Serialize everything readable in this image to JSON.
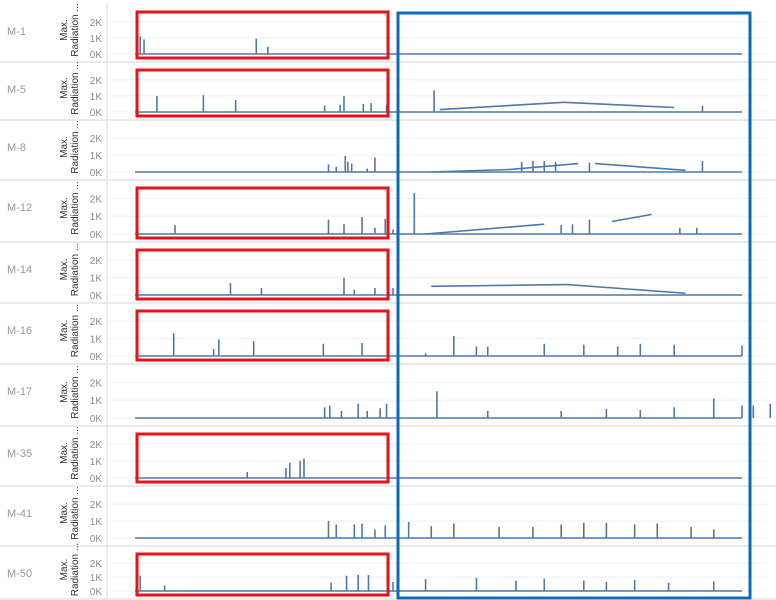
{
  "colors": {
    "line": "#4e79a7",
    "row_border": "#d4d4d4",
    "row_label": "#999999",
    "axis_title": "#333333",
    "tick_label": "#8c8c8c",
    "red_highlight": "#e8121a",
    "blue_highlight": "#0a6bbb"
  },
  "chart_data": {
    "type": "line",
    "y_axis_title": [
      "Max.",
      "Radiation ..."
    ],
    "y_ticks": [
      {
        "value": 0,
        "label": "0K"
      },
      {
        "value": 1000,
        "label": "1K"
      },
      {
        "value": 2000,
        "label": "2K"
      }
    ],
    "ylim": [
      0,
      2300
    ],
    "xlim": [
      0,
      1
    ],
    "grid": true,
    "panels": [
      {
        "name": "M-1",
        "baseline_to": 1.0,
        "spikes": [
          [
            0.02,
            1100
          ],
          [
            0.035,
            900
          ],
          [
            0.47,
            950
          ],
          [
            0.515,
            450
          ]
        ],
        "ramps": []
      },
      {
        "name": "M-5",
        "baseline_to": 1.0,
        "spikes": [
          [
            0.085,
            1000
          ],
          [
            0.265,
            1050
          ],
          [
            0.39,
            750
          ],
          [
            0.735,
            400
          ],
          [
            0.795,
            450
          ],
          [
            0.81,
            1000
          ],
          [
            0.885,
            500
          ],
          [
            0.915,
            550
          ],
          [
            0.975,
            450
          ],
          [
            1.055,
            1350
          ],
          [
            1.53,
            400
          ]
        ],
        "ramps": [
          [
            1.065,
            1.285,
            150,
            600
          ],
          [
            1.285,
            1.48,
            600,
            280
          ]
        ]
      },
      {
        "name": "M-8",
        "baseline_to": 1.0,
        "spikes": [
          [
            0.75,
            450
          ],
          [
            0.78,
            300
          ],
          [
            0.815,
            950
          ],
          [
            0.825,
            600
          ],
          [
            0.84,
            500
          ],
          [
            0.9,
            200
          ],
          [
            0.93,
            850
          ],
          [
            1.21,
            600
          ],
          [
            1.23,
            650
          ],
          [
            1.25,
            650
          ],
          [
            1.27,
            600
          ],
          [
            1.33,
            550
          ],
          [
            1.53,
            650
          ]
        ],
        "ramps": [
          [
            1.05,
            1.19,
            0,
            150
          ],
          [
            1.19,
            1.31,
            150,
            500
          ],
          [
            1.34,
            1.5,
            500,
            100
          ]
        ]
      },
      {
        "name": "M-12",
        "baseline_to": 1.0,
        "spikes": [
          [
            0.155,
            500
          ],
          [
            0.75,
            800
          ],
          [
            0.81,
            550
          ],
          [
            0.88,
            950
          ],
          [
            0.93,
            350
          ],
          [
            0.97,
            850
          ],
          [
            1.0,
            250
          ],
          [
            1.02,
            2300
          ],
          [
            1.28,
            500
          ],
          [
            1.3,
            550
          ],
          [
            1.33,
            800
          ],
          [
            1.49,
            350
          ],
          [
            1.52,
            350
          ]
        ],
        "ramps": [
          [
            1.04,
            1.25,
            0,
            550
          ],
          [
            1.37,
            1.44,
            700,
            1100
          ]
        ]
      },
      {
        "name": "M-14",
        "baseline_to": 1.0,
        "spikes": [
          [
            0.37,
            700
          ],
          [
            0.49,
            400
          ],
          [
            0.81,
            1000
          ],
          [
            0.85,
            300
          ],
          [
            0.93,
            400
          ],
          [
            1.0,
            400
          ]
        ],
        "ramps": [
          [
            1.05,
            1.29,
            500,
            600
          ],
          [
            1.29,
            1.5,
            600,
            100
          ]
        ]
      },
      {
        "name": "M-16",
        "baseline_to": 1.0,
        "spikes": [
          [
            0.15,
            1300
          ],
          [
            0.305,
            400
          ],
          [
            0.325,
            950
          ],
          [
            0.46,
            850
          ],
          [
            0.73,
            700
          ],
          [
            0.88,
            750
          ],
          [
            1.04,
            150
          ],
          [
            1.09,
            1150
          ],
          [
            1.13,
            550
          ],
          [
            1.15,
            550
          ],
          [
            1.25,
            700
          ],
          [
            1.32,
            650
          ],
          [
            1.38,
            550
          ],
          [
            1.42,
            700
          ],
          [
            1.48,
            650
          ],
          [
            1.6,
            600
          ]
        ],
        "ramps": []
      },
      {
        "name": "M-17",
        "baseline_to": 1.0,
        "spikes": [
          [
            0.735,
            600
          ],
          [
            0.755,
            700
          ],
          [
            0.8,
            400
          ],
          [
            0.865,
            800
          ],
          [
            0.9,
            400
          ],
          [
            0.95,
            550
          ],
          [
            0.975,
            800
          ],
          [
            1.06,
            1500
          ],
          [
            1.15,
            400
          ],
          [
            1.28,
            400
          ],
          [
            1.36,
            500
          ],
          [
            1.42,
            450
          ],
          [
            1.48,
            600
          ],
          [
            1.55,
            1100
          ],
          [
            1.6,
            700
          ],
          [
            1.62,
            700
          ],
          [
            1.65,
            800
          ]
        ],
        "ramps": []
      },
      {
        "name": "M-35",
        "baseline_to": 1.0,
        "spikes": [
          [
            0.435,
            350
          ],
          [
            0.585,
            600
          ],
          [
            0.6,
            900
          ],
          [
            0.64,
            1000
          ],
          [
            0.655,
            1150
          ]
        ],
        "ramps": []
      },
      {
        "name": "M-41",
        "baseline_to": 1.0,
        "spikes": [
          [
            0.75,
            1000
          ],
          [
            0.78,
            800
          ],
          [
            0.85,
            800
          ],
          [
            0.88,
            850
          ],
          [
            0.93,
            500
          ],
          [
            0.97,
            750
          ],
          [
            1.01,
            950
          ],
          [
            1.05,
            700
          ],
          [
            1.09,
            850
          ],
          [
            1.17,
            650
          ],
          [
            1.23,
            650
          ],
          [
            1.28,
            800
          ],
          [
            1.32,
            900
          ],
          [
            1.36,
            900
          ],
          [
            1.41,
            800
          ],
          [
            1.45,
            850
          ],
          [
            1.51,
            650
          ],
          [
            1.55,
            500
          ]
        ],
        "ramps": []
      },
      {
        "name": "M-50",
        "baseline_to": 1.0,
        "spikes": [
          [
            0.02,
            1100
          ],
          [
            0.115,
            400
          ],
          [
            0.76,
            600
          ],
          [
            0.82,
            1100
          ],
          [
            0.865,
            1150
          ],
          [
            0.905,
            1150
          ],
          [
            0.98,
            1050
          ],
          [
            1.0,
            650
          ],
          [
            1.04,
            850
          ],
          [
            1.13,
            950
          ],
          [
            1.2,
            750
          ],
          [
            1.25,
            900
          ],
          [
            1.32,
            750
          ],
          [
            1.36,
            650
          ],
          [
            1.41,
            800
          ],
          [
            1.47,
            600
          ],
          [
            1.55,
            700
          ]
        ],
        "ramps": []
      }
    ]
  },
  "highlights": [
    {
      "color_role": "red",
      "panels": [
        "M-1",
        "M-5",
        "M-12",
        "M-14",
        "M-16",
        "M-35",
        "M-50"
      ],
      "region": "left"
    },
    {
      "color_role": "blue",
      "panels": "all",
      "region": "right"
    }
  ]
}
